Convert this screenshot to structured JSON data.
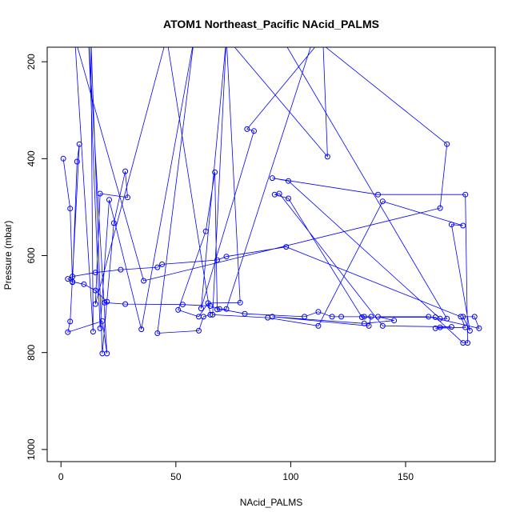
{
  "chart_data": {
    "type": "line",
    "title": "ATOM1 Northeast_Pacific NAcid_PALMS",
    "xlabel": "NAcid_PALMS",
    "ylabel": "Pressure (mbar)",
    "xlim": [
      -6,
      189
    ],
    "ylim": [
      1025,
      170
    ],
    "y_reversed": true,
    "grid": false,
    "legend": "none",
    "line_color": "#0000ff",
    "marker": "open-circle",
    "x_ticks": [
      0,
      50,
      100,
      150
    ],
    "x_tick_labels": [
      "0",
      "50",
      "100",
      "150"
    ],
    "y_ticks": [
      200,
      400,
      600,
      800,
      1000
    ],
    "y_tick_labels": [
      "200",
      "400",
      "600",
      "800",
      "1000"
    ],
    "series": [
      {
        "x": [
          1,
          4,
          5,
          7,
          8,
          4,
          3,
          18,
          20,
          12,
          17,
          21,
          35,
          58,
          42,
          60,
          62,
          65,
          46,
          15,
          17,
          29,
          28,
          23,
          18,
          13,
          14,
          6,
          36,
          165,
          168,
          110,
          72,
          68,
          67,
          63,
          51,
          60,
          64,
          78,
          72,
          61,
          84,
          81,
          114,
          116,
          72,
          66,
          90,
          112,
          140,
          175,
          170,
          178,
          175,
          180,
          182,
          160,
          138,
          145,
          132,
          92,
          134,
          135,
          132,
          122,
          118,
          112,
          106,
          80,
          69,
          65,
          53,
          28,
          19,
          20,
          15,
          10,
          5,
          3,
          5,
          15,
          26,
          42,
          44,
          68,
          72,
          98,
          174,
          176,
          163,
          165,
          170,
          140,
          95,
          93,
          99,
          131,
          163,
          175,
          177,
          176,
          138,
          92,
          99,
          165,
          168,
          96,
          73,
          74
        ],
        "y": [
          400,
          503,
          655,
          406,
          370,
          736,
          758,
          735,
          802,
          150,
          750,
          485,
          752,
          150,
          760,
          755,
          726,
          722,
          150,
          700,
          472,
          480,
          426,
          533,
          802,
          150,
          757,
          150,
          652,
          502,
          370,
          150,
          710,
          711,
          428,
          550,
          712,
          726,
          698,
          697,
          150,
          709,
          343,
          339,
          150,
          396,
          150,
          722,
          728,
          745,
          488,
          538,
          536,
          755,
          726,
          726,
          750,
          726,
          726,
          734,
          740,
          726,
          745,
          726,
          726,
          726,
          726,
          716,
          726,
          720,
          710,
          704,
          701,
          700,
          697,
          695,
          672,
          659,
          654,
          648,
          643,
          635,
          629,
          624,
          618,
          609,
          602,
          582,
          726,
          748,
          750,
          748,
          747,
          745,
          472,
          474,
          482,
          727,
          727,
          780,
          780,
          474,
          474,
          440,
          446,
          730,
          730,
          150,
          150,
          150
        ]
      }
    ]
  }
}
